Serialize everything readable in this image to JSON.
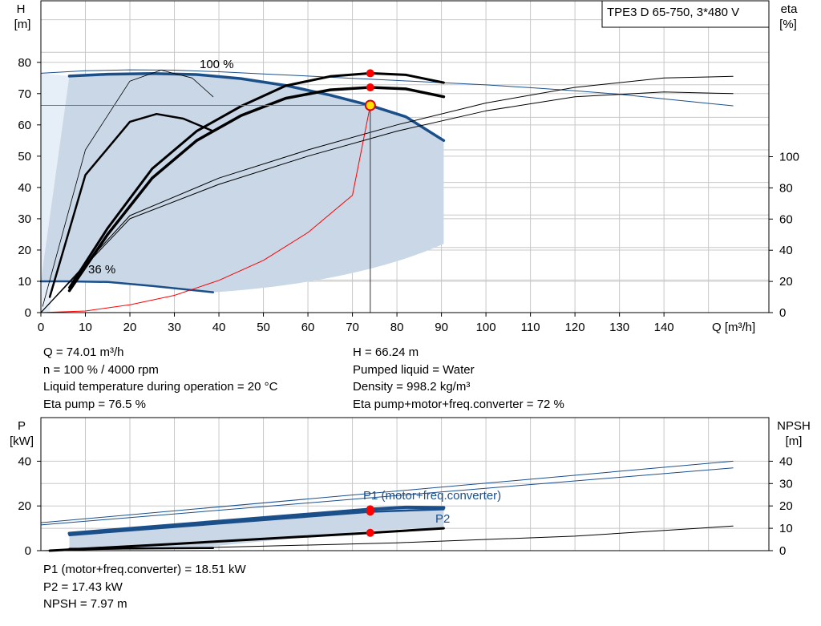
{
  "top_chart": {
    "title_box": "TPE3 D 65-750, 3*480 V",
    "y_left_label": [
      "H",
      "[m]"
    ],
    "y_right_label": [
      "eta",
      "[%]"
    ],
    "x_label": "Q [m³/h]",
    "x_ticks": [
      0,
      10,
      20,
      30,
      40,
      50,
      60,
      70,
      80,
      90,
      100,
      110,
      120,
      130,
      140
    ],
    "y_left_ticks": [
      0,
      10,
      20,
      30,
      40,
      50,
      60,
      70,
      80
    ],
    "y_right_ticks": [
      0,
      20,
      40,
      60,
      80,
      100
    ],
    "annotations": {
      "speed_max": "100 %",
      "speed_min": "36 %"
    }
  },
  "operating_info_left": [
    "Q = 74.01 m³/h",
    "n = 100 % / 4000 rpm",
    "Liquid temperature during operation = 20 °C",
    "Eta pump = 76.5 %"
  ],
  "operating_info_right": [
    "H = 66.24 m",
    "Pumped liquid = Water",
    "Density = 998.2 kg/m³",
    "Eta pump+motor+freq.converter = 72 %"
  ],
  "bottom_chart": {
    "y_left_label": [
      "P",
      "[kW]"
    ],
    "y_right_label": [
      "NPSH",
      "[m]"
    ],
    "y_left_ticks": [
      0,
      20,
      40
    ],
    "y_right_ticks": [
      0,
      10,
      20,
      30,
      40
    ],
    "labels": {
      "p1": "P1 (motor+freq.converter)",
      "p2": "P2"
    }
  },
  "power_info": [
    "P1 (motor+freq.converter) = 18.51 kW",
    "P2 = 17.43 kW",
    "NPSH = 7.97 m"
  ],
  "colors": {
    "blue": "#1a4f8a",
    "band": "#c9d7e6",
    "band_light": "#e6eef7",
    "grid": "#c8c8c8",
    "red": "#ff0000"
  },
  "chart_data": [
    {
      "type": "line",
      "title": "TPE3 D 65-750, 3*480 V",
      "xlabel": "Q [m³/h]",
      "ylabel": "H [m]",
      "y2label": "eta [%]",
      "xlim": [
        0,
        160
      ],
      "ylim": [
        0,
        88
      ],
      "y2lim": [
        0,
        88
      ],
      "grid": true,
      "operating_point": {
        "Q": 74.01,
        "H": 66.24,
        "eta_pump": 76.5,
        "eta_total": 72
      },
      "series": [
        {
          "name": "100 %",
          "axis": "H",
          "x": [
            6.4,
            15,
            25,
            35,
            45,
            55,
            65,
            74,
            82,
            90.5
          ],
          "y": [
            75.6,
            76.2,
            76.4,
            76.1,
            74.8,
            72.6,
            69.5,
            66.2,
            62.6,
            55
          ]
        },
        {
          "name": "36 %",
          "axis": "H",
          "x": [
            0,
            6,
            15,
            25,
            38.7
          ],
          "y": [
            10,
            10,
            9.8,
            8.5,
            6.5
          ]
        },
        {
          "axis": "H",
          "x": [
            0,
            10,
            20,
            30,
            40,
            50,
            60,
            70,
            80,
            90,
            100,
            110,
            120,
            130,
            140,
            155.5
          ],
          "y": [
            76.5,
            77.3,
            77.6,
            77.5,
            77,
            76.3,
            75.6,
            74.9,
            74.2,
            73.5,
            72.8,
            71.9,
            70.9,
            69.8,
            68.3,
            66.1
          ]
        },
        {
          "axis": "H",
          "x": [
            0,
            10,
            20,
            30,
            40,
            50,
            60,
            70,
            74
          ],
          "y": [
            0,
            0.5,
            2.5,
            5.5,
            10.3,
            16.7,
            25.6,
            37.5,
            66.2
          ]
        },
        {
          "axis": "eta",
          "x": [
            6.4,
            15,
            25,
            35,
            45,
            55,
            65,
            74,
            82,
            90.5
          ],
          "y": [
            8,
            27,
            46,
            58,
            66,
            72.5,
            75.5,
            76.5,
            76,
            73.5
          ]
        },
        {
          "axis": "eta",
          "x": [
            6.4,
            15,
            25,
            35,
            45,
            55,
            65,
            74,
            82,
            90.5
          ],
          "y": [
            7,
            25,
            43,
            55,
            63,
            68.5,
            71.2,
            72,
            71.5,
            69
          ]
        },
        {
          "axis": "eta",
          "x": [
            0,
            20,
            40,
            60,
            80,
            100,
            120,
            140,
            155.5
          ],
          "y": [
            0,
            31,
            43,
            52,
            60,
            67,
            72,
            75,
            75.5
          ]
        },
        {
          "axis": "eta",
          "x": [
            0,
            20,
            40,
            60,
            80,
            100,
            120,
            140,
            155.5
          ],
          "y": [
            0,
            30,
            41,
            50,
            58,
            64.5,
            69,
            70.5,
            70
          ]
        },
        {
          "axis": "eta",
          "x": [
            2,
            10,
            20,
            26,
            32,
            38.7
          ],
          "y": [
            5,
            44,
            61,
            63.5,
            62,
            58
          ]
        },
        {
          "axis": "eta",
          "x": [
            0.4,
            10,
            20,
            27,
            34,
            38.7
          ],
          "y": [
            2,
            52,
            74,
            77.5,
            75,
            69
          ]
        }
      ]
    },
    {
      "type": "line",
      "ylabel": "P [kW]",
      "y2label": "NPSH [m]",
      "xlim": [
        0,
        160
      ],
      "ylim": [
        0,
        49
      ],
      "y2lim": [
        0,
        49
      ],
      "grid": true,
      "operating_point": {
        "P1": 18.51,
        "P2": 17.43,
        "NPSH": 7.97
      },
      "series": [
        {
          "name": "P1 (motor+freq.converter)",
          "axis": "P",
          "x": [
            6.4,
            74,
            82,
            90.5
          ],
          "y": [
            7.7,
            18.5,
            19.4,
            19.2
          ]
        },
        {
          "name": "P2",
          "axis": "P",
          "x": [
            6.4,
            74,
            90.5
          ],
          "y": [
            6.9,
            17.4,
            18.5
          ]
        },
        {
          "axis": "P",
          "x": [
            0,
            155.5
          ],
          "y": [
            12.5,
            40
          ]
        },
        {
          "axis": "P",
          "x": [
            0,
            155.5
          ],
          "y": [
            11.5,
            37
          ]
        },
        {
          "axis": "P",
          "x": [
            6.4,
            38.7
          ],
          "y": [
            0.8,
            1.2
          ]
        },
        {
          "axis": "NPSH",
          "x": [
            2,
            30,
            74,
            90.5
          ],
          "y": [
            0,
            3,
            7.97,
            10
          ]
        },
        {
          "axis": "NPSH",
          "x": [
            0,
            40,
            80,
            120,
            155.5
          ],
          "y": [
            0,
            1.5,
            3.5,
            6.5,
            11
          ]
        }
      ]
    }
  ]
}
